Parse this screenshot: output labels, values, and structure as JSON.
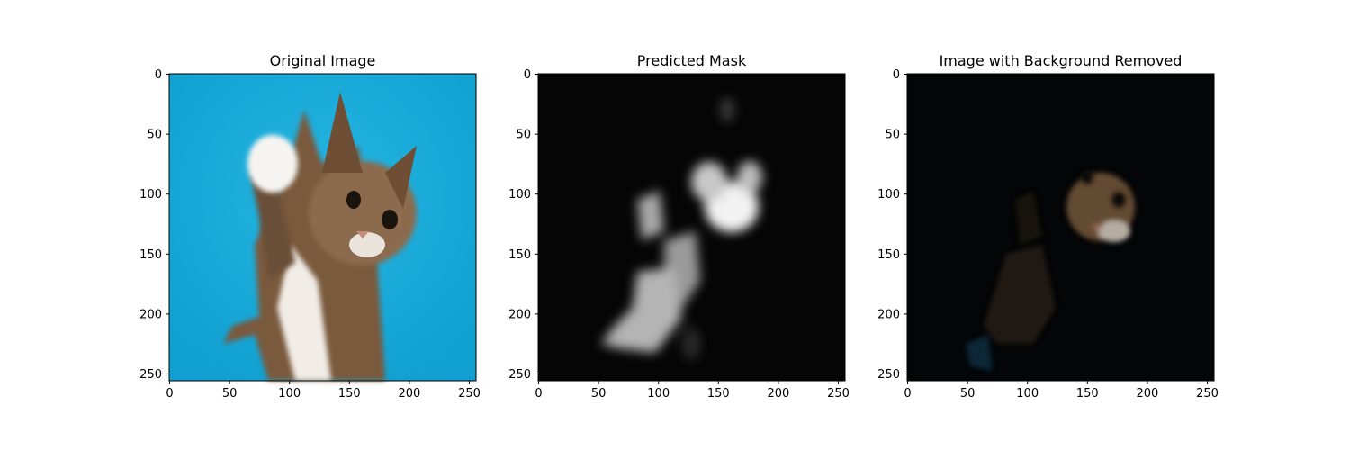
{
  "panels": [
    {
      "title": "Original Image",
      "kind": "original",
      "x_ticks": [
        "0",
        "50",
        "100",
        "150",
        "200",
        "250"
      ],
      "y_ticks": [
        "0",
        "50",
        "100",
        "150",
        "200",
        "250"
      ]
    },
    {
      "title": "Predicted Mask",
      "kind": "mask",
      "x_ticks": [
        "0",
        "50",
        "100",
        "150",
        "200",
        "250"
      ],
      "y_ticks": [
        "0",
        "50",
        "100",
        "150",
        "200",
        "250"
      ]
    },
    {
      "title": "Image with Background Removed",
      "kind": "masked",
      "x_ticks": [
        "0",
        "50",
        "100",
        "150",
        "200",
        "250"
      ],
      "y_ticks": [
        "0",
        "50",
        "100",
        "150",
        "200",
        "250"
      ]
    }
  ],
  "image_size": 256,
  "colors": {
    "background_blue": "#1aaad8",
    "fur_brown": "#8a6a4a",
    "fur_white": "#f4f0ea",
    "mask_black": "#050505",
    "mask_white": "#e8e8e8"
  }
}
